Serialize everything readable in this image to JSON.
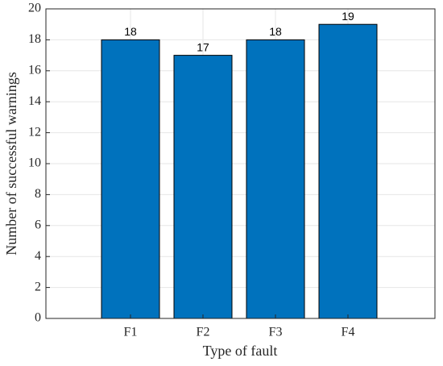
{
  "chart_data": {
    "type": "bar",
    "x_label": "Type of fault",
    "y_label": "Number of successful warnings",
    "categories": [
      "F1",
      "F2",
      "F3",
      "F4"
    ],
    "values": [
      18,
      17,
      18,
      19
    ],
    "color": "#0072bd",
    "ylim": [
      0,
      20
    ],
    "yticks": [
      0,
      2,
      4,
      6,
      8,
      10,
      12,
      14,
      16,
      18,
      20
    ],
    "grid": true,
    "data_labels": true
  }
}
